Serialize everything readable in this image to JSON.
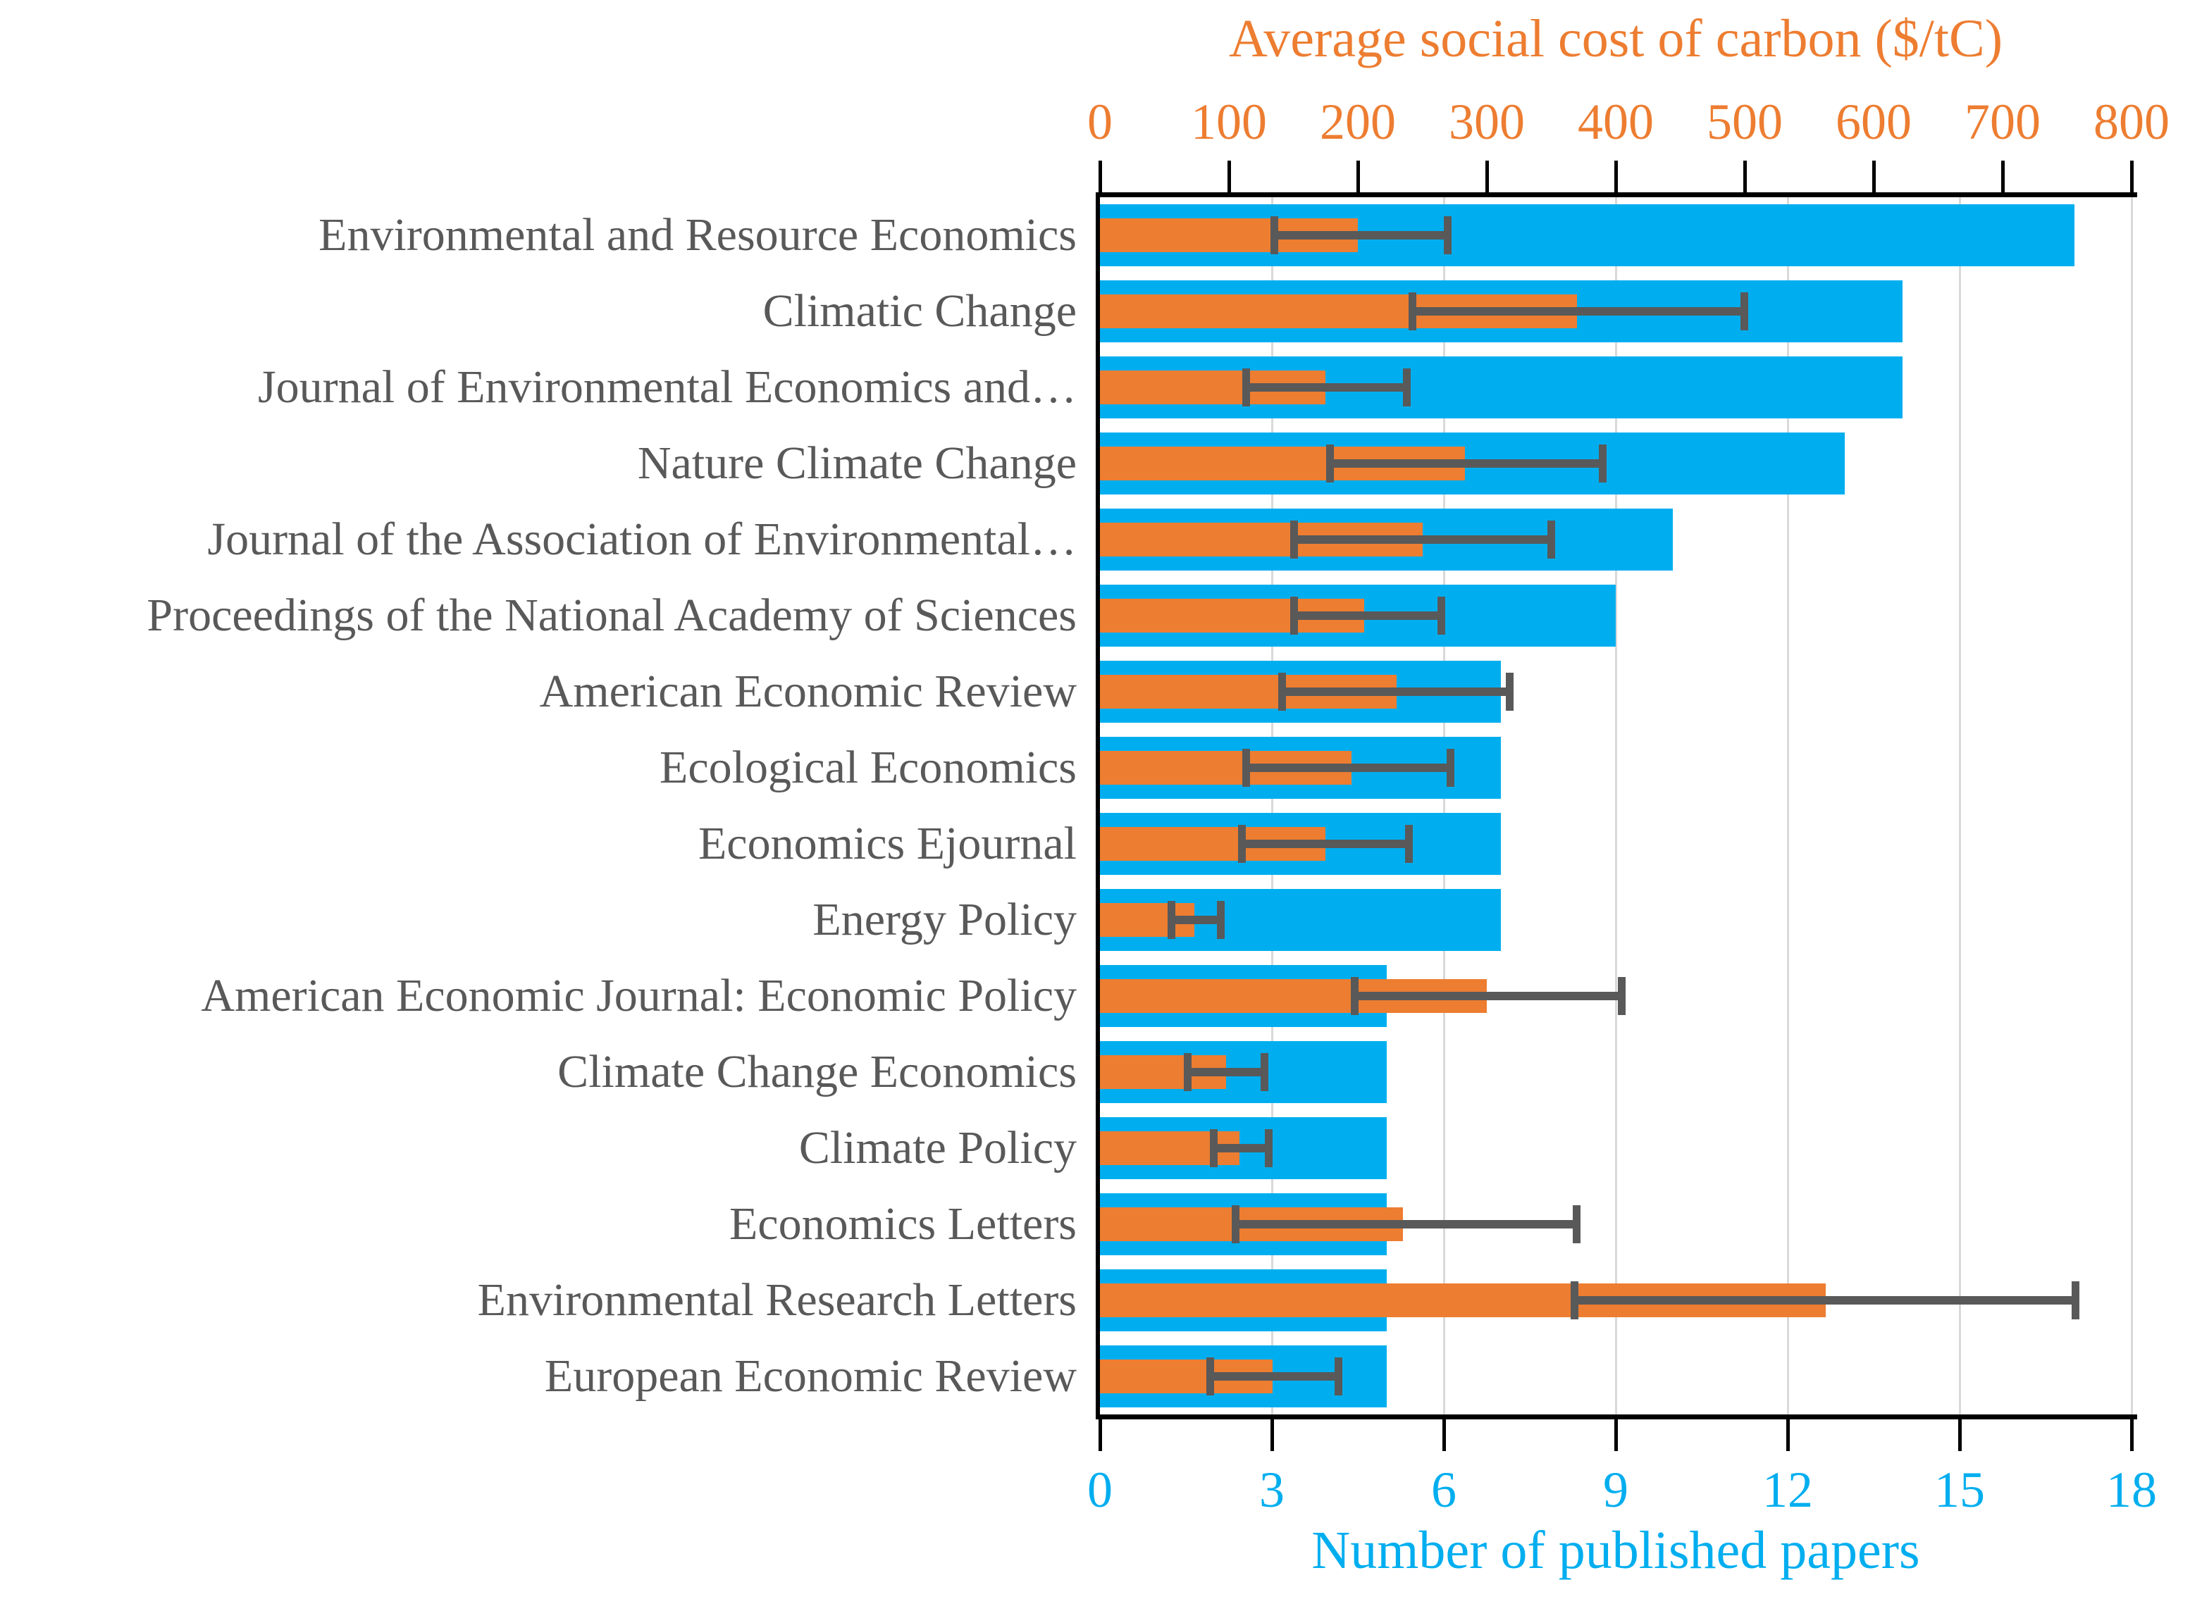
{
  "chart_data": {
    "type": "bar",
    "orientation": "horizontal",
    "legend": "none",
    "grid": "vertical-at-bottom-axis-ticks",
    "categories": [
      "Environmental and Resource Economics",
      "Climatic Change",
      "Journal of Environmental Economics and…",
      "Nature Climate Change",
      "Journal of the Association of Environmental…",
      "Proceedings of the National Academy of Sciences",
      "American Economic Review",
      "Ecological Economics",
      "Economics Ejournal",
      "Energy Policy",
      "American Economic Journal: Economic Policy",
      "Climate Change Economics",
      "Climate Policy",
      "Economics Letters",
      "Environmental Research Letters",
      "European Economic Review"
    ],
    "series": [
      {
        "name": "Number of published papers",
        "axis": "bottom",
        "color": "#00AEEF",
        "values": [
          17,
          14,
          14,
          13,
          10,
          9,
          7,
          7,
          7,
          7,
          5,
          5,
          5,
          5,
          5,
          5
        ]
      },
      {
        "name": "Average social cost of carbon ($/tC)",
        "axis": "top",
        "color": "#ED7D31",
        "error_color": "#595959",
        "values": [
          200,
          370,
          175,
          283,
          250,
          205,
          230,
          195,
          175,
          73,
          300,
          98,
          108,
          235,
          563,
          134
        ],
        "error_low": [
          135,
          242,
          113,
          178,
          150,
          150,
          141,
          113,
          110,
          55,
          197,
          68,
          88,
          105,
          368,
          85
        ],
        "error_high": [
          270,
          500,
          238,
          390,
          350,
          265,
          318,
          272,
          240,
          94,
          405,
          128,
          131,
          370,
          757,
          185
        ]
      }
    ],
    "top_axis": {
      "label": "Average social cost of carbon ($/tC)",
      "range": [
        0,
        800
      ],
      "ticks": [
        0,
        100,
        200,
        300,
        400,
        500,
        600,
        700,
        800
      ],
      "color": "#ED7D31"
    },
    "bottom_axis": {
      "label": "Number of published papers",
      "range": [
        0,
        18
      ],
      "ticks": [
        0,
        3,
        6,
        9,
        12,
        15,
        18
      ],
      "color": "#00AEEF"
    },
    "colors": {
      "papers_bar": "#00AEEF",
      "scc_bar": "#ED7D31",
      "error_bar": "#595959",
      "category_label": "#595959",
      "gridline": "#D9D9D9",
      "axis_line": "#000000"
    }
  }
}
